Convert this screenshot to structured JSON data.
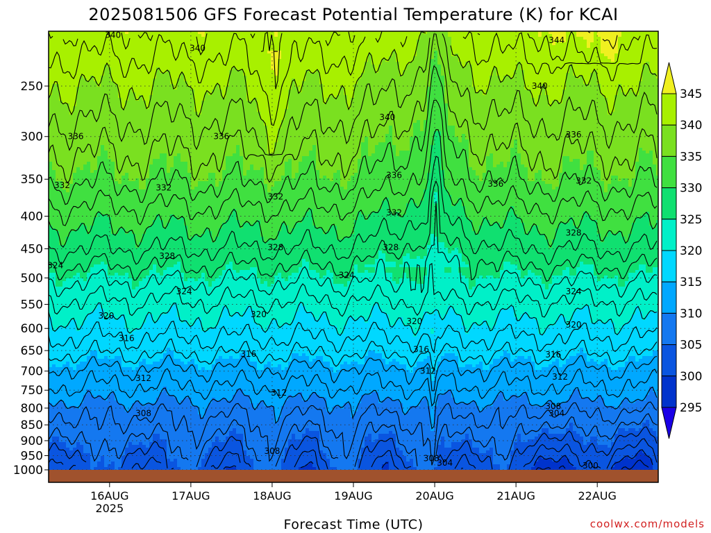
{
  "chart_data": {
    "type": "heatmap",
    "title": "2025081506 GFS Forecast Potential Temperature (K) for KCAI",
    "xlabel": "Forecast Time (UTC)",
    "ylabel": "",
    "y_axis_unit": "hPa",
    "y_axis_scale": "log-pressure, inverted (1000 at bottom)",
    "y_ticks": [
      250,
      300,
      350,
      400,
      450,
      500,
      550,
      600,
      650,
      700,
      750,
      800,
      850,
      900,
      950,
      1000
    ],
    "ylim": [
      1000,
      200
    ],
    "x_ticks": [
      {
        "label": "16AUG",
        "sublabel": "2025",
        "hours": 18
      },
      {
        "label": "17AUG",
        "sublabel": "",
        "hours": 42
      },
      {
        "label": "18AUG",
        "sublabel": "",
        "hours": 66
      },
      {
        "label": "19AUG",
        "sublabel": "",
        "hours": 90
      },
      {
        "label": "20AUG",
        "sublabel": "",
        "hours": 114
      },
      {
        "label": "21AUG",
        "sublabel": "",
        "hours": 138
      },
      {
        "label": "22AUG",
        "sublabel": "",
        "hours": 162
      }
    ],
    "xlim_hours": [
      0,
      180
    ],
    "grid": "dotted",
    "colorbar": {
      "levels": [
        295,
        300,
        305,
        310,
        315,
        320,
        325,
        330,
        335,
        340,
        345
      ],
      "colors": [
        "#1a00e6",
        "#0033cc",
        "#0a55e0",
        "#1478f0",
        "#00a8ff",
        "#00d8ff",
        "#00f0c8",
        "#10e070",
        "#40e040",
        "#7ae020",
        "#a8f000",
        "#f0f020"
      ],
      "extend": "both",
      "placement": "right"
    },
    "contour_interval": 2,
    "base_profile": [
      {
        "p": 1000,
        "theta": 303
      },
      {
        "p": 950,
        "theta": 304.5
      },
      {
        "p": 900,
        "theta": 306
      },
      {
        "p": 850,
        "theta": 307.5
      },
      {
        "p": 800,
        "theta": 309
      },
      {
        "p": 750,
        "theta": 311.5
      },
      {
        "p": 700,
        "theta": 313.5
      },
      {
        "p": 650,
        "theta": 316.5
      },
      {
        "p": 600,
        "theta": 319
      },
      {
        "p": 550,
        "theta": 321.5
      },
      {
        "p": 500,
        "theta": 324.5
      },
      {
        "p": 450,
        "theta": 328
      },
      {
        "p": 400,
        "theta": 331
      },
      {
        "p": 350,
        "theta": 334.5
      },
      {
        "p": 300,
        "theta": 337
      },
      {
        "p": 250,
        "theta": 340
      },
      {
        "p": 200,
        "theta": 344
      }
    ],
    "contour_labels": [
      {
        "text": "340",
        "hours": 19,
        "p": 208
      },
      {
        "text": "340",
        "hours": 44,
        "p": 218
      },
      {
        "text": "344",
        "hours": 150,
        "p": 212
      },
      {
        "text": "340",
        "hours": 100,
        "p": 280
      },
      {
        "text": "340",
        "hours": 145,
        "p": 250
      },
      {
        "text": "336",
        "hours": 8,
        "p": 300
      },
      {
        "text": "336",
        "hours": 51,
        "p": 300
      },
      {
        "text": "336",
        "hours": 102,
        "p": 345
      },
      {
        "text": "336",
        "hours": 132,
        "p": 356
      },
      {
        "text": "336",
        "hours": 155,
        "p": 298
      },
      {
        "text": "332",
        "hours": 4,
        "p": 358
      },
      {
        "text": "332",
        "hours": 34,
        "p": 361
      },
      {
        "text": "332",
        "hours": 67,
        "p": 373
      },
      {
        "text": "332",
        "hours": 102,
        "p": 395
      },
      {
        "text": "332",
        "hours": 158,
        "p": 352
      },
      {
        "text": "328",
        "hours": 35,
        "p": 462
      },
      {
        "text": "328",
        "hours": 67,
        "p": 448
      },
      {
        "text": "328",
        "hours": 101,
        "p": 448
      },
      {
        "text": "328",
        "hours": 155,
        "p": 425
      },
      {
        "text": "324",
        "hours": 2,
        "p": 478
      },
      {
        "text": "324",
        "hours": 40,
        "p": 525
      },
      {
        "text": "324",
        "hours": 88,
        "p": 495
      },
      {
        "text": "324",
        "hours": 155,
        "p": 525
      },
      {
        "text": "320",
        "hours": 17,
        "p": 573
      },
      {
        "text": "320",
        "hours": 62,
        "p": 570
      },
      {
        "text": "320",
        "hours": 108,
        "p": 585
      },
      {
        "text": "320",
        "hours": 155,
        "p": 592
      },
      {
        "text": "316",
        "hours": 23,
        "p": 622
      },
      {
        "text": "316",
        "hours": 59,
        "p": 658
      },
      {
        "text": "316",
        "hours": 110,
        "p": 647
      },
      {
        "text": "316",
        "hours": 149,
        "p": 660
      },
      {
        "text": "312",
        "hours": 28,
        "p": 718
      },
      {
        "text": "312",
        "hours": 68,
        "p": 757
      },
      {
        "text": "312",
        "hours": 112,
        "p": 700
      },
      {
        "text": "312",
        "hours": 151,
        "p": 715
      },
      {
        "text": "308",
        "hours": 28,
        "p": 815
      },
      {
        "text": "308",
        "hours": 66,
        "p": 935
      },
      {
        "text": "308",
        "hours": 113,
        "p": 960
      },
      {
        "text": "308",
        "hours": 149,
        "p": 795
      },
      {
        "text": "304",
        "hours": 150,
        "p": 815
      },
      {
        "text": "304",
        "hours": 117,
        "p": 975
      },
      {
        "text": "300",
        "hours": 160,
        "p": 985
      }
    ]
  },
  "credit": "coolwx.com/models"
}
